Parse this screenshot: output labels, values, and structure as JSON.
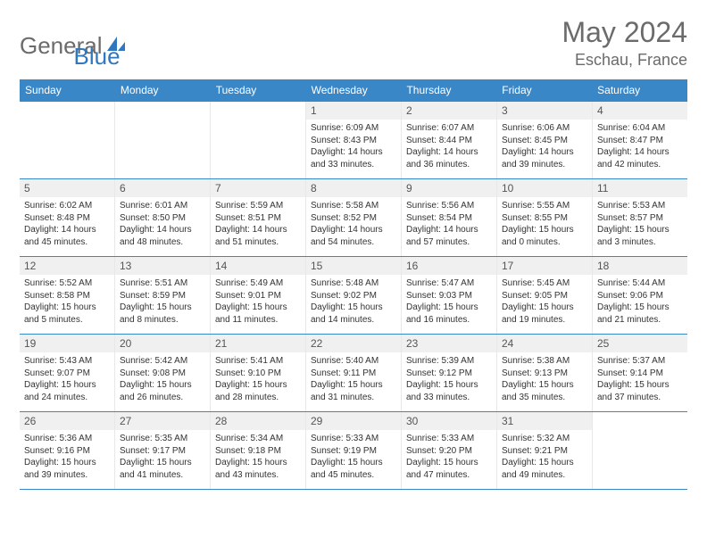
{
  "logo": {
    "general": "General",
    "blue": "Blue"
  },
  "header": {
    "title": "May 2024",
    "location": "Eschau, France"
  },
  "dayNames": [
    "Sunday",
    "Monday",
    "Tuesday",
    "Wednesday",
    "Thursday",
    "Friday",
    "Saturday"
  ],
  "colors": {
    "headerBg": "#3a87c8",
    "headerText": "#ffffff",
    "borderWeek": "#3a87c8",
    "dayNumBg": "#f0f0f0",
    "textGray": "#6b6b6b"
  },
  "weeks": [
    [
      {
        "num": "",
        "empty": true
      },
      {
        "num": "",
        "empty": true
      },
      {
        "num": "",
        "empty": true
      },
      {
        "num": "1",
        "sunrise": "Sunrise: 6:09 AM",
        "sunset": "Sunset: 8:43 PM",
        "day1": "Daylight: 14 hours",
        "day2": "and 33 minutes."
      },
      {
        "num": "2",
        "sunrise": "Sunrise: 6:07 AM",
        "sunset": "Sunset: 8:44 PM",
        "day1": "Daylight: 14 hours",
        "day2": "and 36 minutes."
      },
      {
        "num": "3",
        "sunrise": "Sunrise: 6:06 AM",
        "sunset": "Sunset: 8:45 PM",
        "day1": "Daylight: 14 hours",
        "day2": "and 39 minutes."
      },
      {
        "num": "4",
        "sunrise": "Sunrise: 6:04 AM",
        "sunset": "Sunset: 8:47 PM",
        "day1": "Daylight: 14 hours",
        "day2": "and 42 minutes."
      }
    ],
    [
      {
        "num": "5",
        "sunrise": "Sunrise: 6:02 AM",
        "sunset": "Sunset: 8:48 PM",
        "day1": "Daylight: 14 hours",
        "day2": "and 45 minutes."
      },
      {
        "num": "6",
        "sunrise": "Sunrise: 6:01 AM",
        "sunset": "Sunset: 8:50 PM",
        "day1": "Daylight: 14 hours",
        "day2": "and 48 minutes."
      },
      {
        "num": "7",
        "sunrise": "Sunrise: 5:59 AM",
        "sunset": "Sunset: 8:51 PM",
        "day1": "Daylight: 14 hours",
        "day2": "and 51 minutes."
      },
      {
        "num": "8",
        "sunrise": "Sunrise: 5:58 AM",
        "sunset": "Sunset: 8:52 PM",
        "day1": "Daylight: 14 hours",
        "day2": "and 54 minutes."
      },
      {
        "num": "9",
        "sunrise": "Sunrise: 5:56 AM",
        "sunset": "Sunset: 8:54 PM",
        "day1": "Daylight: 14 hours",
        "day2": "and 57 minutes."
      },
      {
        "num": "10",
        "sunrise": "Sunrise: 5:55 AM",
        "sunset": "Sunset: 8:55 PM",
        "day1": "Daylight: 15 hours",
        "day2": "and 0 minutes."
      },
      {
        "num": "11",
        "sunrise": "Sunrise: 5:53 AM",
        "sunset": "Sunset: 8:57 PM",
        "day1": "Daylight: 15 hours",
        "day2": "and 3 minutes."
      }
    ],
    [
      {
        "num": "12",
        "sunrise": "Sunrise: 5:52 AM",
        "sunset": "Sunset: 8:58 PM",
        "day1": "Daylight: 15 hours",
        "day2": "and 5 minutes."
      },
      {
        "num": "13",
        "sunrise": "Sunrise: 5:51 AM",
        "sunset": "Sunset: 8:59 PM",
        "day1": "Daylight: 15 hours",
        "day2": "and 8 minutes."
      },
      {
        "num": "14",
        "sunrise": "Sunrise: 5:49 AM",
        "sunset": "Sunset: 9:01 PM",
        "day1": "Daylight: 15 hours",
        "day2": "and 11 minutes."
      },
      {
        "num": "15",
        "sunrise": "Sunrise: 5:48 AM",
        "sunset": "Sunset: 9:02 PM",
        "day1": "Daylight: 15 hours",
        "day2": "and 14 minutes."
      },
      {
        "num": "16",
        "sunrise": "Sunrise: 5:47 AM",
        "sunset": "Sunset: 9:03 PM",
        "day1": "Daylight: 15 hours",
        "day2": "and 16 minutes."
      },
      {
        "num": "17",
        "sunrise": "Sunrise: 5:45 AM",
        "sunset": "Sunset: 9:05 PM",
        "day1": "Daylight: 15 hours",
        "day2": "and 19 minutes."
      },
      {
        "num": "18",
        "sunrise": "Sunrise: 5:44 AM",
        "sunset": "Sunset: 9:06 PM",
        "day1": "Daylight: 15 hours",
        "day2": "and 21 minutes."
      }
    ],
    [
      {
        "num": "19",
        "sunrise": "Sunrise: 5:43 AM",
        "sunset": "Sunset: 9:07 PM",
        "day1": "Daylight: 15 hours",
        "day2": "and 24 minutes."
      },
      {
        "num": "20",
        "sunrise": "Sunrise: 5:42 AM",
        "sunset": "Sunset: 9:08 PM",
        "day1": "Daylight: 15 hours",
        "day2": "and 26 minutes."
      },
      {
        "num": "21",
        "sunrise": "Sunrise: 5:41 AM",
        "sunset": "Sunset: 9:10 PM",
        "day1": "Daylight: 15 hours",
        "day2": "and 28 minutes."
      },
      {
        "num": "22",
        "sunrise": "Sunrise: 5:40 AM",
        "sunset": "Sunset: 9:11 PM",
        "day1": "Daylight: 15 hours",
        "day2": "and 31 minutes."
      },
      {
        "num": "23",
        "sunrise": "Sunrise: 5:39 AM",
        "sunset": "Sunset: 9:12 PM",
        "day1": "Daylight: 15 hours",
        "day2": "and 33 minutes."
      },
      {
        "num": "24",
        "sunrise": "Sunrise: 5:38 AM",
        "sunset": "Sunset: 9:13 PM",
        "day1": "Daylight: 15 hours",
        "day2": "and 35 minutes."
      },
      {
        "num": "25",
        "sunrise": "Sunrise: 5:37 AM",
        "sunset": "Sunset: 9:14 PM",
        "day1": "Daylight: 15 hours",
        "day2": "and 37 minutes."
      }
    ],
    [
      {
        "num": "26",
        "sunrise": "Sunrise: 5:36 AM",
        "sunset": "Sunset: 9:16 PM",
        "day1": "Daylight: 15 hours",
        "day2": "and 39 minutes."
      },
      {
        "num": "27",
        "sunrise": "Sunrise: 5:35 AM",
        "sunset": "Sunset: 9:17 PM",
        "day1": "Daylight: 15 hours",
        "day2": "and 41 minutes."
      },
      {
        "num": "28",
        "sunrise": "Sunrise: 5:34 AM",
        "sunset": "Sunset: 9:18 PM",
        "day1": "Daylight: 15 hours",
        "day2": "and 43 minutes."
      },
      {
        "num": "29",
        "sunrise": "Sunrise: 5:33 AM",
        "sunset": "Sunset: 9:19 PM",
        "day1": "Daylight: 15 hours",
        "day2": "and 45 minutes."
      },
      {
        "num": "30",
        "sunrise": "Sunrise: 5:33 AM",
        "sunset": "Sunset: 9:20 PM",
        "day1": "Daylight: 15 hours",
        "day2": "and 47 minutes."
      },
      {
        "num": "31",
        "sunrise": "Sunrise: 5:32 AM",
        "sunset": "Sunset: 9:21 PM",
        "day1": "Daylight: 15 hours",
        "day2": "and 49 minutes."
      },
      {
        "num": "",
        "empty": true
      }
    ]
  ]
}
